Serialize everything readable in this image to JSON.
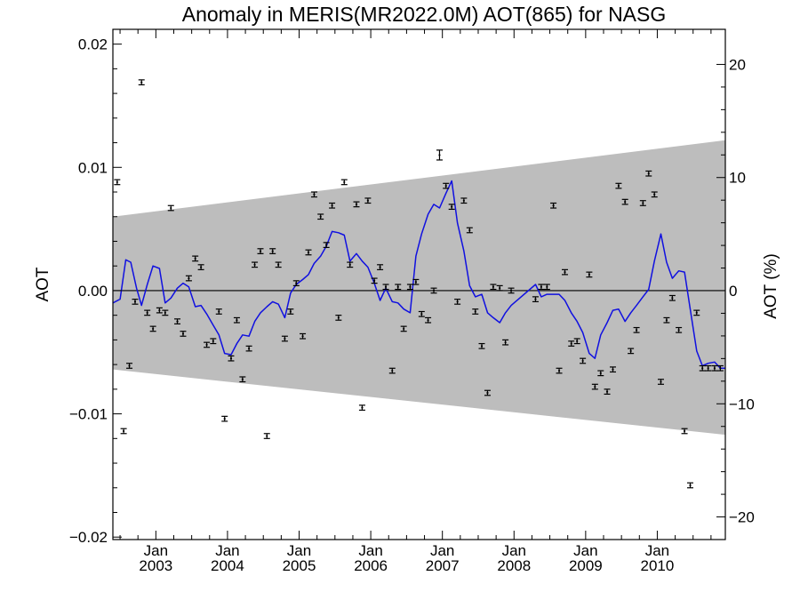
{
  "chart_data": {
    "type": "scatter",
    "title": "Anomaly in MERIS(MR2022.0M) AOT(865) for NASG",
    "ylabel": "AOT",
    "y2label": "AOT (%)",
    "xlabel": "",
    "xlim": [
      2002.4,
      2010.95
    ],
    "ylim": [
      -0.0202,
      0.0212
    ],
    "y2lim": [
      -22.0,
      23.1
    ],
    "y2_per_y": 1090,
    "grid": false,
    "legend": "none",
    "colors": {
      "line": "#1010e0",
      "band": "#bdbdbd",
      "points": "#000000",
      "zero_line": "#000000"
    },
    "yticks": [
      {
        "value": 0.02,
        "label": "0.02"
      },
      {
        "value": 0.01,
        "label": "0.01"
      },
      {
        "value": 0.0,
        "label": "0.00"
      },
      {
        "value": -0.01,
        "label": "−0.01"
      },
      {
        "value": -0.02,
        "label": "−0.02"
      }
    ],
    "y2ticks": [
      {
        "value": 20,
        "label": "20"
      },
      {
        "value": 10,
        "label": "10"
      },
      {
        "value": 0,
        "label": "0"
      },
      {
        "value": -10,
        "label": "−10"
      },
      {
        "value": -20,
        "label": "−20"
      }
    ],
    "xticks": [
      {
        "value": 2003.0,
        "month": "Jan",
        "year": "2003"
      },
      {
        "value": 2004.0,
        "month": "Jan",
        "year": "2004"
      },
      {
        "value": 2005.0,
        "month": "Jan",
        "year": "2005"
      },
      {
        "value": 2006.0,
        "month": "Jan",
        "year": "2006"
      },
      {
        "value": 2007.0,
        "month": "Jan",
        "year": "2007"
      },
      {
        "value": 2008.0,
        "month": "Jan",
        "year": "2008"
      },
      {
        "value": 2009.0,
        "month": "Jan",
        "year": "2009"
      },
      {
        "value": 2010.0,
        "month": "Jan",
        "year": "2010"
      }
    ],
    "band": {
      "upper": [
        [
          2002.4,
          0.006
        ],
        [
          2010.95,
          0.0122
        ]
      ],
      "lower": [
        [
          2002.4,
          -0.0064
        ],
        [
          2010.95,
          -0.0117
        ]
      ]
    },
    "series": [
      {
        "type": "scatter_errorbar",
        "x": [
          2002.46,
          2002.55,
          2002.63,
          2002.71,
          2002.8,
          2002.88,
          2002.96,
          2003.05,
          2003.13,
          2003.21,
          2003.3,
          2003.38,
          2003.46,
          2003.55,
          2003.63,
          2003.71,
          2003.8,
          2003.88,
          2003.96,
          2004.05,
          2004.13,
          2004.21,
          2004.3,
          2004.38,
          2004.46,
          2004.55,
          2004.63,
          2004.71,
          2004.8,
          2004.88,
          2004.96,
          2005.05,
          2005.13,
          2005.21,
          2005.3,
          2005.38,
          2005.46,
          2005.55,
          2005.63,
          2005.71,
          2005.8,
          2005.88,
          2005.96,
          2006.05,
          2006.13,
          2006.21,
          2006.3,
          2006.38,
          2006.46,
          2006.55,
          2006.63,
          2006.71,
          2006.8,
          2006.88,
          2006.96,
          2007.05,
          2007.13,
          2007.21,
          2007.3,
          2007.38,
          2007.46,
          2007.55,
          2007.63,
          2007.71,
          2007.8,
          2007.88,
          2007.96,
          2008.3,
          2008.38,
          2008.46,
          2008.55,
          2008.63,
          2008.71,
          2008.8,
          2008.88,
          2008.96,
          2009.05,
          2009.13,
          2009.21,
          2009.3,
          2009.38,
          2009.46,
          2009.55,
          2009.63,
          2009.71,
          2009.8,
          2009.88,
          2009.96,
          2010.05,
          2010.13,
          2010.21,
          2010.3,
          2010.38,
          2010.46,
          2010.55,
          2010.63,
          2010.71,
          2010.8,
          2010.88
        ],
        "y": [
          0.0088,
          -0.0114,
          -0.0061,
          -0.0009,
          0.0169,
          -0.0018,
          -0.0031,
          -0.0016,
          -0.0018,
          0.0067,
          -0.0025,
          -0.0035,
          0.001,
          0.0026,
          0.0019,
          -0.0044,
          -0.0041,
          -0.0017,
          -0.0104,
          -0.0055,
          -0.0024,
          -0.0072,
          -0.0047,
          0.0021,
          0.0032,
          -0.0118,
          0.0032,
          0.0021,
          -0.0039,
          -0.0017,
          0.0006,
          -0.0037,
          0.0031,
          0.0078,
          0.006,
          0.0037,
          0.0069,
          -0.0022,
          0.0088,
          0.0021,
          0.007,
          -0.0095,
          0.0073,
          0.0008,
          0.0019,
          0.0003,
          -0.0065,
          0.0003,
          -0.0031,
          0.0003,
          0.0007,
          -0.0019,
          -0.0024,
          0.0,
          0.011,
          0.0085,
          0.0068,
          -0.0009,
          0.0073,
          0.0049,
          -0.0017,
          -0.0045,
          -0.0083,
          0.0003,
          0.0002,
          -0.0042,
          0.0,
          -0.0007,
          0.0003,
          0.0003,
          0.0069,
          -0.0065,
          0.0015,
          -0.0043,
          -0.0041,
          -0.0057,
          0.0013,
          -0.0078,
          -0.0067,
          -0.0082,
          -0.0064,
          0.0085,
          0.0072,
          -0.0049,
          -0.0032,
          0.0071,
          0.0095,
          0.0078,
          -0.0074,
          -0.0024,
          -0.0006,
          -0.0032,
          -0.0114,
          -0.0158,
          -0.0018,
          -0.0063,
          -0.0063,
          -0.0063,
          -0.0063
        ],
        "err": [
          0.0002,
          0.0002,
          0.0002,
          0.0002,
          0.0002,
          0.0002,
          0.0002,
          0.0002,
          0.0002,
          0.0002,
          0.0002,
          0.0002,
          0.0002,
          0.0002,
          0.0002,
          0.0002,
          0.0002,
          0.0002,
          0.0002,
          0.0002,
          0.0002,
          0.0002,
          0.0002,
          0.0002,
          0.0002,
          0.0002,
          0.0002,
          0.0002,
          0.0002,
          0.0002,
          0.0002,
          0.0002,
          0.0002,
          0.0002,
          0.0002,
          0.0002,
          0.0002,
          0.0002,
          0.0002,
          0.0002,
          0.0002,
          0.0002,
          0.0002,
          0.0002,
          0.0002,
          0.0002,
          0.0002,
          0.0002,
          0.0002,
          0.0002,
          0.0002,
          0.0002,
          0.0002,
          0.0002,
          0.0004,
          0.0002,
          0.0002,
          0.0002,
          0.0002,
          0.0002,
          0.0002,
          0.0002,
          0.0002,
          0.0002,
          0.0002,
          0.0002,
          0.0002,
          0.0002,
          0.0002,
          0.0002,
          0.0002,
          0.0002,
          0.0002,
          0.0002,
          0.0002,
          0.0002,
          0.0002,
          0.0002,
          0.0002,
          0.0002,
          0.0002,
          0.0002,
          0.0002,
          0.0002,
          0.0002,
          0.0002,
          0.0002,
          0.0002,
          0.0002,
          0.0002,
          0.0002,
          0.0002,
          0.0002,
          0.0002,
          0.0002,
          0.0002,
          0.0002,
          0.0002,
          0.0002
        ]
      },
      {
        "type": "line",
        "x": [
          2002.4,
          2002.5,
          2002.58,
          2002.65,
          2002.73,
          2002.8,
          2002.88,
          2002.96,
          2003.05,
          2003.13,
          2003.21,
          2003.3,
          2003.38,
          2003.46,
          2003.55,
          2003.63,
          2003.71,
          2003.8,
          2003.88,
          2003.96,
          2004.05,
          2004.13,
          2004.21,
          2004.3,
          2004.38,
          2004.46,
          2004.55,
          2004.63,
          2004.71,
          2004.8,
          2004.88,
          2004.96,
          2005.05,
          2005.13,
          2005.21,
          2005.3,
          2005.38,
          2005.46,
          2005.55,
          2005.63,
          2005.71,
          2005.8,
          2005.88,
          2005.96,
          2006.05,
          2006.13,
          2006.21,
          2006.3,
          2006.38,
          2006.46,
          2006.55,
          2006.63,
          2006.71,
          2006.8,
          2006.88,
          2006.96,
          2007.05,
          2007.13,
          2007.21,
          2007.3,
          2007.38,
          2007.46,
          2007.55,
          2007.63,
          2007.71,
          2007.8,
          2007.88,
          2007.96,
          2008.3,
          2008.38,
          2008.46,
          2008.55,
          2008.63,
          2008.71,
          2008.8,
          2008.88,
          2008.96,
          2009.05,
          2009.13,
          2009.21,
          2009.3,
          2009.38,
          2009.46,
          2009.55,
          2009.63,
          2009.71,
          2009.8,
          2009.88,
          2009.96,
          2010.05,
          2010.13,
          2010.21,
          2010.3,
          2010.38,
          2010.46,
          2010.55,
          2010.63,
          2010.71,
          2010.8,
          2010.88,
          2010.95
        ],
        "y": [
          -0.001,
          -0.0007,
          0.0025,
          0.0023,
          0.0002,
          -0.0012,
          0.0005,
          0.002,
          0.0018,
          -0.001,
          -0.0006,
          0.0002,
          0.0006,
          0.0003,
          -0.0013,
          -0.0012,
          -0.0019,
          -0.0028,
          -0.0036,
          -0.0051,
          -0.0052,
          -0.0043,
          -0.0036,
          -0.0037,
          -0.0025,
          -0.0018,
          -0.0013,
          -0.0009,
          -0.0011,
          -0.0022,
          -0.0002,
          0.0005,
          0.0009,
          0.0013,
          0.0022,
          0.0028,
          0.0036,
          0.0048,
          0.0047,
          0.0045,
          0.0024,
          0.003,
          0.0024,
          0.0019,
          0.0006,
          -0.0008,
          0.0002,
          -0.0009,
          -0.001,
          -0.0015,
          -0.0018,
          0.0028,
          0.0046,
          0.0062,
          0.007,
          0.0067,
          0.0079,
          0.0089,
          0.0055,
          0.0032,
          0.0004,
          -0.0005,
          -0.0003,
          -0.0018,
          -0.0022,
          -0.0026,
          -0.0018,
          -0.0012,
          0.0005,
          -0.0005,
          -0.0003,
          -0.0003,
          -0.0003,
          -0.0008,
          -0.0018,
          -0.0025,
          -0.0034,
          -0.0051,
          -0.0055,
          -0.0036,
          -0.0026,
          -0.0016,
          -0.0015,
          -0.0025,
          -0.0018,
          -0.0012,
          -0.0005,
          0.0001,
          0.0024,
          0.0046,
          0.0023,
          0.001,
          0.0016,
          0.0015,
          -0.0015,
          -0.0049,
          -0.0061,
          -0.0059,
          -0.0058,
          -0.0063,
          -0.0063
        ]
      }
    ]
  }
}
